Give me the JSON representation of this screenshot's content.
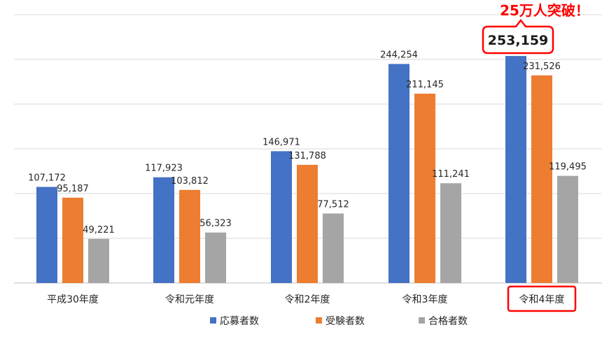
{
  "chart_data": {
    "type": "bar",
    "categories": [
      "平成30年度",
      "令和元年度",
      "令和2年度",
      "令和3年度",
      "令和4年度"
    ],
    "series": [
      {
        "name": "応募者数",
        "values": [
          107172,
          117923,
          146971,
          244254,
          253159
        ],
        "labels": [
          "107,172",
          "117,923",
          "146,971",
          "244,254",
          ""
        ]
      },
      {
        "name": "受験者数",
        "values": [
          95187,
          103812,
          131788,
          211145,
          231526
        ],
        "labels": [
          "95,187",
          "103,812",
          "131,788",
          "211,145",
          "231,526"
        ]
      },
      {
        "name": "合格者数",
        "values": [
          49221,
          56323,
          77512,
          111241,
          119495
        ],
        "labels": [
          "49,221",
          "56,323",
          "77,512",
          "111,241",
          "119,495"
        ]
      }
    ],
    "ylim": [
      0,
      300000
    ],
    "grid": true,
    "legend_position": "bottom",
    "title": "",
    "xlabel": "",
    "ylabel": "",
    "highlight": {
      "category_index": 4,
      "headline": "25万人突破！",
      "callout_value": "253,159"
    }
  },
  "colors": {
    "series": [
      "#4472C4",
      "#ED7D31",
      "#A5A5A5"
    ],
    "highlight": "#FF0000",
    "grid": "#D9D9D9",
    "axis": "#BFBFBF"
  }
}
